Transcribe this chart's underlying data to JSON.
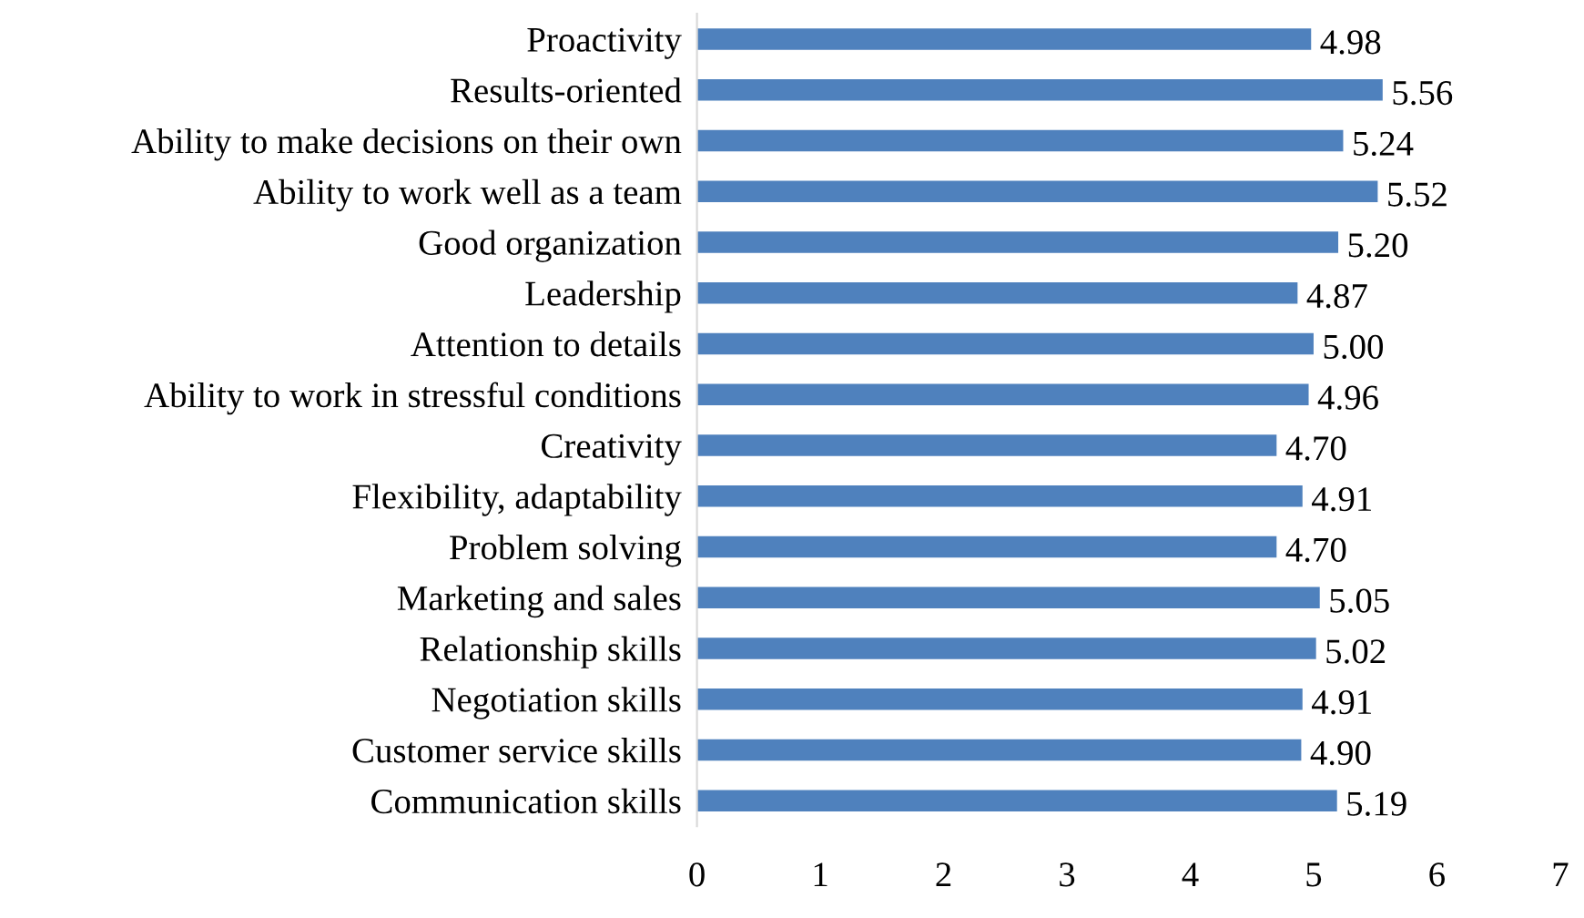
{
  "chart_data": {
    "type": "bar",
    "orientation": "horizontal",
    "categories": [
      "Proactivity",
      "Results-oriented",
      "Ability to make decisions on their own",
      "Ability to work well as a team",
      "Good organization",
      "Leadership",
      "Attention to details",
      "Ability to work in stressful conditions",
      "Creativity",
      "Flexibility, adaptability",
      "Problem solving",
      "Marketing and sales",
      "Relationship skills",
      "Negotiation skills",
      "Customer service skills",
      "Communication skills"
    ],
    "values": [
      4.98,
      5.56,
      5.24,
      5.52,
      5.2,
      4.87,
      5.0,
      4.96,
      4.7,
      4.91,
      4.7,
      5.05,
      5.02,
      4.91,
      4.9,
      5.19
    ],
    "value_labels": [
      "4.98",
      "5.56",
      "5.24",
      "5.52",
      "5.20",
      "4.87",
      "5.00",
      "4.96",
      "4.70",
      "4.91",
      "4.70",
      "5.05",
      "5.02",
      "4.91",
      "4.90",
      "5.19"
    ],
    "color": "#4f81bd",
    "xlim": [
      0,
      7
    ],
    "xticks": [
      0,
      1,
      2,
      3,
      4,
      5,
      6,
      7
    ],
    "grid": false,
    "legend": false
  }
}
